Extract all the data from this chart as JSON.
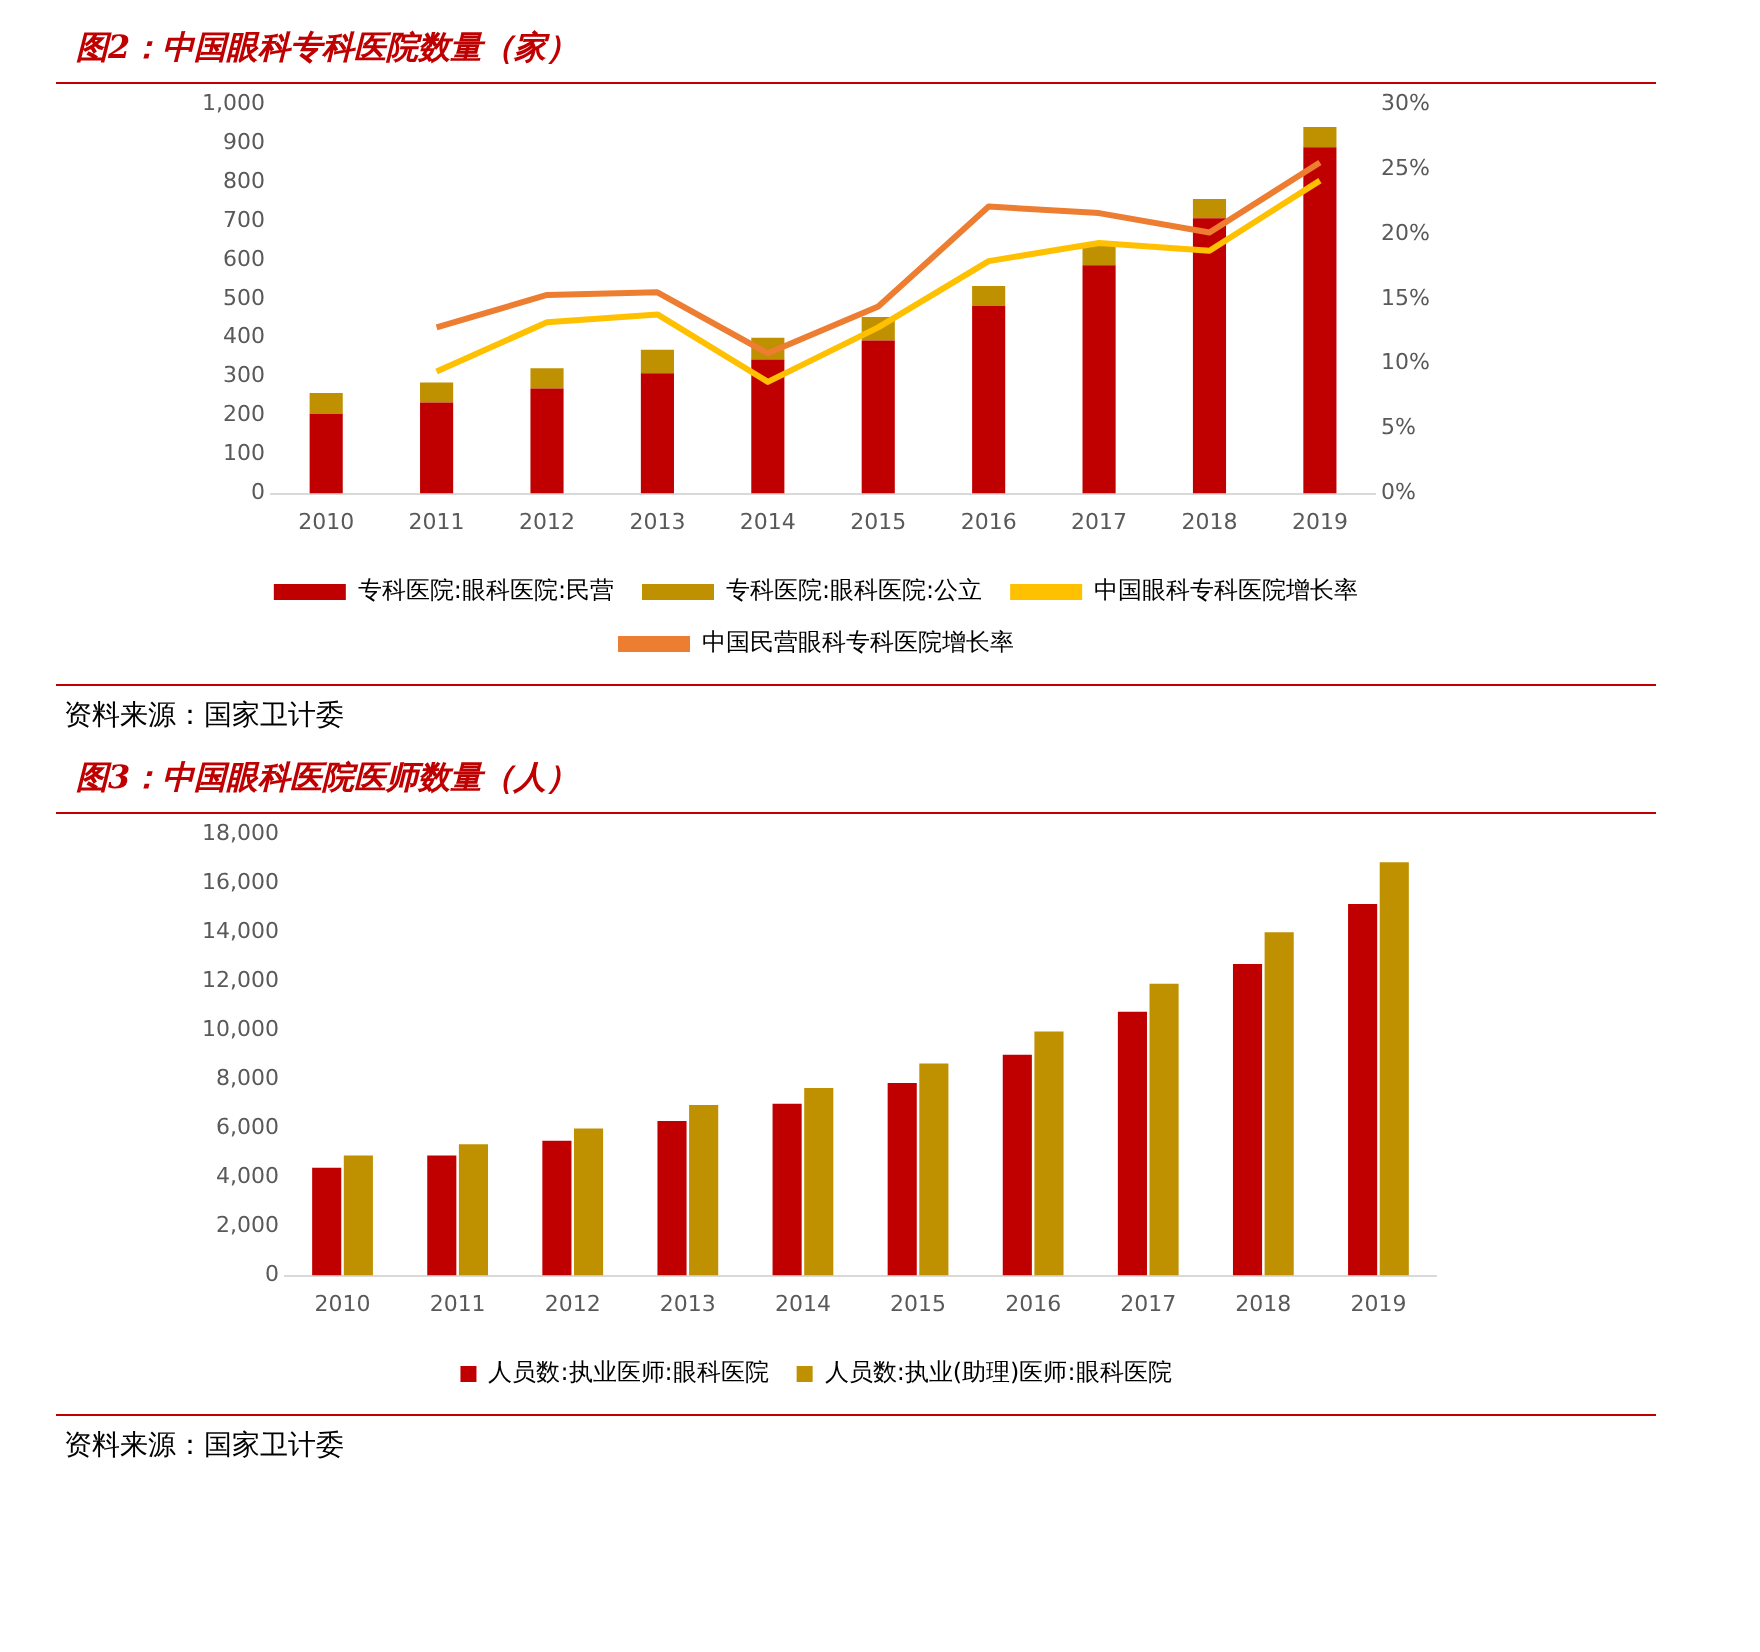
{
  "chart_data": [
    {
      "type": "bar",
      "title": "图2：中国眼科专科医院数量（家）",
      "stacked": true,
      "categories": [
        "2010",
        "2011",
        "2012",
        "2013",
        "2014",
        "2015",
        "2016",
        "2017",
        "2018",
        "2019"
      ],
      "series": [
        {
          "name": "专科医院:眼科医院:民营",
          "color": "#c00000",
          "values": [
            205,
            234,
            270,
            309,
            344,
            393,
            482,
            586,
            707,
            889
          ]
        },
        {
          "name": "专科医院:眼科医院:公立",
          "color": "#bf9000",
          "values": [
            53,
            51,
            52,
            60,
            56,
            60,
            51,
            53,
            49,
            52
          ]
        },
        {
          "name": "中国眼科专科医院增长率",
          "type": "line",
          "axis": "y2",
          "color": "#ffc000",
          "values": [
            null,
            9.4,
            13.2,
            13.8,
            8.6,
            12.8,
            17.9,
            19.3,
            18.7,
            24.1
          ]
        },
        {
          "name": "中国民营眼科专科医院增长率",
          "type": "line",
          "axis": "y2",
          "color": "#ed7d31",
          "values": [
            null,
            12.8,
            15.3,
            15.5,
            10.8,
            14.4,
            22.1,
            21.6,
            20.1,
            25.5
          ]
        }
      ],
      "ylim": [
        0,
        1000
      ],
      "yticks": [
        0,
        100,
        200,
        300,
        400,
        500,
        600,
        700,
        800,
        900,
        {
          "value": 1000,
          "label": "1,000"
        }
      ],
      "y2lim": [
        0,
        30
      ],
      "y2ticks": [
        {
          "value": 0,
          "label": "0%"
        },
        {
          "value": 5,
          "label": "5%"
        },
        {
          "value": 10,
          "label": "10%"
        },
        {
          "value": 15,
          "label": "15%"
        },
        {
          "value": 20,
          "label": "20%"
        },
        {
          "value": 25,
          "label": "25%"
        },
        {
          "value": 30,
          "label": "30%"
        }
      ],
      "grid": false,
      "legend": "bottom",
      "marker": "none",
      "annotations": [
        "资料来源：国家卫计委"
      ]
    },
    {
      "type": "bar",
      "title": "图3：中国眼科医院医师数量（人）",
      "categories": [
        "2010",
        "2011",
        "2012",
        "2013",
        "2014",
        "2015",
        "2016",
        "2017",
        "2018",
        "2019"
      ],
      "series": [
        {
          "name": "人员数:执业医师:眼科医院",
          "color": "#c00000",
          "values": [
            4400,
            4900,
            5500,
            6300,
            7000,
            7850,
            9000,
            10750,
            12700,
            15150
          ]
        },
        {
          "name": "人员数:执业(助理)医师:眼科医院",
          "color": "#bf9000",
          "values": [
            4900,
            5350,
            6000,
            6950,
            7650,
            8650,
            9950,
            11900,
            14000,
            16850
          ]
        }
      ],
      "ylim": [
        0,
        18000
      ],
      "yticks": [
        0,
        {
          "value": 2000,
          "label": "2,000"
        },
        {
          "value": 4000,
          "label": "4,000"
        },
        {
          "value": 6000,
          "label": "6,000"
        },
        {
          "value": 8000,
          "label": "8,000"
        },
        {
          "value": 10000,
          "label": "10,000"
        },
        {
          "value": 12000,
          "label": "12,000"
        },
        {
          "value": 14000,
          "label": "14,000"
        },
        {
          "value": 16000,
          "label": "16,000"
        },
        {
          "value": 18000,
          "label": "18,000"
        }
      ],
      "grid": false,
      "legend": "bottom",
      "annotations": [
        "资料来源：国家卫计委"
      ]
    }
  ]
}
